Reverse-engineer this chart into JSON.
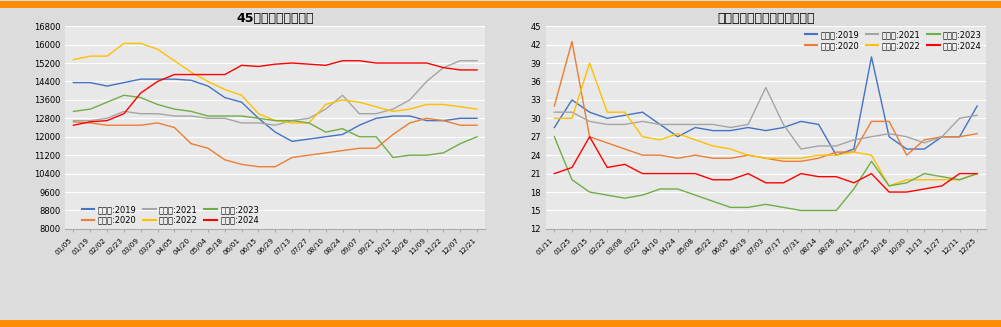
{
  "chart1": {
    "title": "45港进口铁矿石库存",
    "ylim": [
      8000,
      16800
    ],
    "yticks": [
      8000,
      8800,
      9600,
      10400,
      11200,
      12000,
      12800,
      13600,
      14400,
      15200,
      16000,
      16800
    ],
    "xlabel_ticks": [
      "01/05",
      "01/19",
      "02/02",
      "02/23",
      "03/09",
      "03/23",
      "04/05",
      "04/20",
      "05/04",
      "05/18",
      "06/01",
      "06/15",
      "06/29",
      "07/13",
      "07/27",
      "08/10",
      "08/24",
      "09/07",
      "09/21",
      "10/12",
      "10/26",
      "11/09",
      "11/22",
      "12/07",
      "12/21"
    ],
    "series": {
      "2019": {
        "color": "#4472C4",
        "data": [
          14350,
          14350,
          14200,
          14350,
          14500,
          14500,
          14500,
          14450,
          14200,
          13700,
          13500,
          12800,
          12200,
          11800,
          11900,
          12000,
          12100,
          12500,
          12800,
          12900,
          12900,
          12700,
          12700,
          12800,
          12800
        ]
      },
      "2020": {
        "color": "#ED7D31",
        "data": [
          12650,
          12600,
          12500,
          12500,
          12500,
          12600,
          12400,
          11700,
          11500,
          11000,
          10800,
          10700,
          10700,
          11100,
          11200,
          11300,
          11400,
          11500,
          11500,
          12100,
          12600,
          12800,
          12700,
          12500,
          12500
        ]
      },
      "2021": {
        "color": "#A5A5A5",
        "data": [
          12700,
          12700,
          12800,
          13100,
          13000,
          13000,
          12900,
          12900,
          12800,
          12800,
          12600,
          12600,
          12500,
          12700,
          12800,
          13200,
          13800,
          13000,
          13000,
          13200,
          13600,
          14400,
          15000,
          15300,
          15300
        ]
      },
      "2022": {
        "color": "#FFC000",
        "data": [
          15350,
          15500,
          15500,
          16050,
          16050,
          15800,
          15300,
          14800,
          14400,
          14050,
          13800,
          13000,
          12700,
          12600,
          12600,
          13400,
          13600,
          13500,
          13300,
          13100,
          13200,
          13400,
          13400,
          13300,
          13200
        ]
      },
      "2023": {
        "color": "#70AD47",
        "data": [
          13100,
          13200,
          13500,
          13800,
          13700,
          13400,
          13200,
          13100,
          12900,
          12900,
          12900,
          12800,
          12700,
          12700,
          12600,
          12200,
          12350,
          12000,
          12000,
          11100,
          11200,
          11200,
          11300,
          11700,
          12000
        ]
      },
      "2024": {
        "color": "#FF0000",
        "data": [
          12500,
          12650,
          12700,
          13000,
          13900,
          14400,
          14700,
          14700,
          14700,
          14700,
          15100,
          15050,
          15150,
          15200,
          15150,
          15100,
          15300,
          15300,
          15200,
          15200,
          15200,
          15200,
          15000,
          14900,
          14900
        ]
      }
    }
  },
  "chart2": {
    "title": "钙厂进口铁矿石库存可用天数",
    "ylim": [
      12,
      45
    ],
    "yticks": [
      12,
      15,
      18,
      21,
      24,
      27,
      30,
      33,
      36,
      39,
      42,
      45
    ],
    "xlabel_ticks": [
      "01/11",
      "01/25",
      "02/15",
      "02/22",
      "03/08",
      "03/22",
      "04/10",
      "04/24",
      "05/08",
      "05/22",
      "06/05",
      "06/19",
      "07/03",
      "07/17",
      "07/31",
      "08/14",
      "08/28",
      "09/11",
      "09/25",
      "10/16",
      "10/30",
      "11/13",
      "11/27",
      "12/11",
      "12/25"
    ],
    "series": {
      "2019": {
        "color": "#4472C4",
        "data": [
          28.5,
          33,
          31,
          30,
          30.5,
          31,
          29,
          27,
          28.5,
          28,
          28,
          28.5,
          28,
          28.5,
          29.5,
          29,
          24,
          25,
          40,
          27,
          25,
          25,
          27,
          27,
          32
        ]
      },
      "2020": {
        "color": "#ED7D31",
        "data": [
          32,
          42.5,
          27,
          26,
          25,
          24,
          24,
          23.5,
          24,
          23.5,
          23.5,
          24,
          23.5,
          23,
          23,
          23.5,
          24.5,
          24.5,
          29.5,
          29.5,
          24,
          26.5,
          27,
          27,
          27.5
        ]
      },
      "2021": {
        "color": "#A5A5A5",
        "data": [
          31,
          31,
          29.5,
          29,
          29,
          29.5,
          29,
          29,
          29,
          29,
          28.5,
          29,
          35,
          29,
          25,
          25.5,
          25.5,
          26.5,
          27,
          27.5,
          27,
          26,
          27,
          30,
          30.5
        ]
      },
      "2022": {
        "color": "#FFC000",
        "data": [
          30,
          30,
          39,
          31,
          31,
          27,
          26.5,
          27.5,
          26.5,
          25.5,
          25,
          24,
          23.5,
          23.5,
          23.5,
          24,
          24,
          24.5,
          24,
          19,
          20,
          20,
          20,
          20,
          21
        ]
      },
      "2023": {
        "color": "#70AD47",
        "data": [
          27,
          20,
          18,
          17.5,
          17,
          17.5,
          18.5,
          18.5,
          17.5,
          16.5,
          15.5,
          15.5,
          16,
          15.5,
          15,
          15,
          15,
          18.5,
          23,
          19,
          19.5,
          21,
          20.5,
          20,
          21
        ]
      },
      "2024": {
        "color": "#FF0000",
        "data": [
          21,
          22,
          27,
          22,
          22.5,
          21,
          21,
          21,
          21,
          20,
          20,
          21,
          19.5,
          19.5,
          21,
          20.5,
          20.5,
          19.5,
          21,
          18,
          18,
          18.5,
          19,
          21,
          21
        ]
      }
    }
  },
  "years": [
    "2019",
    "2020",
    "2021",
    "2022",
    "2023",
    "2024"
  ],
  "legend_prefix": "求和须:",
  "background_color": "#DCDCDC",
  "plot_bg_color": "#E8E8E8",
  "border_color": "#FF8C00",
  "grid_color": "#FFFFFF"
}
